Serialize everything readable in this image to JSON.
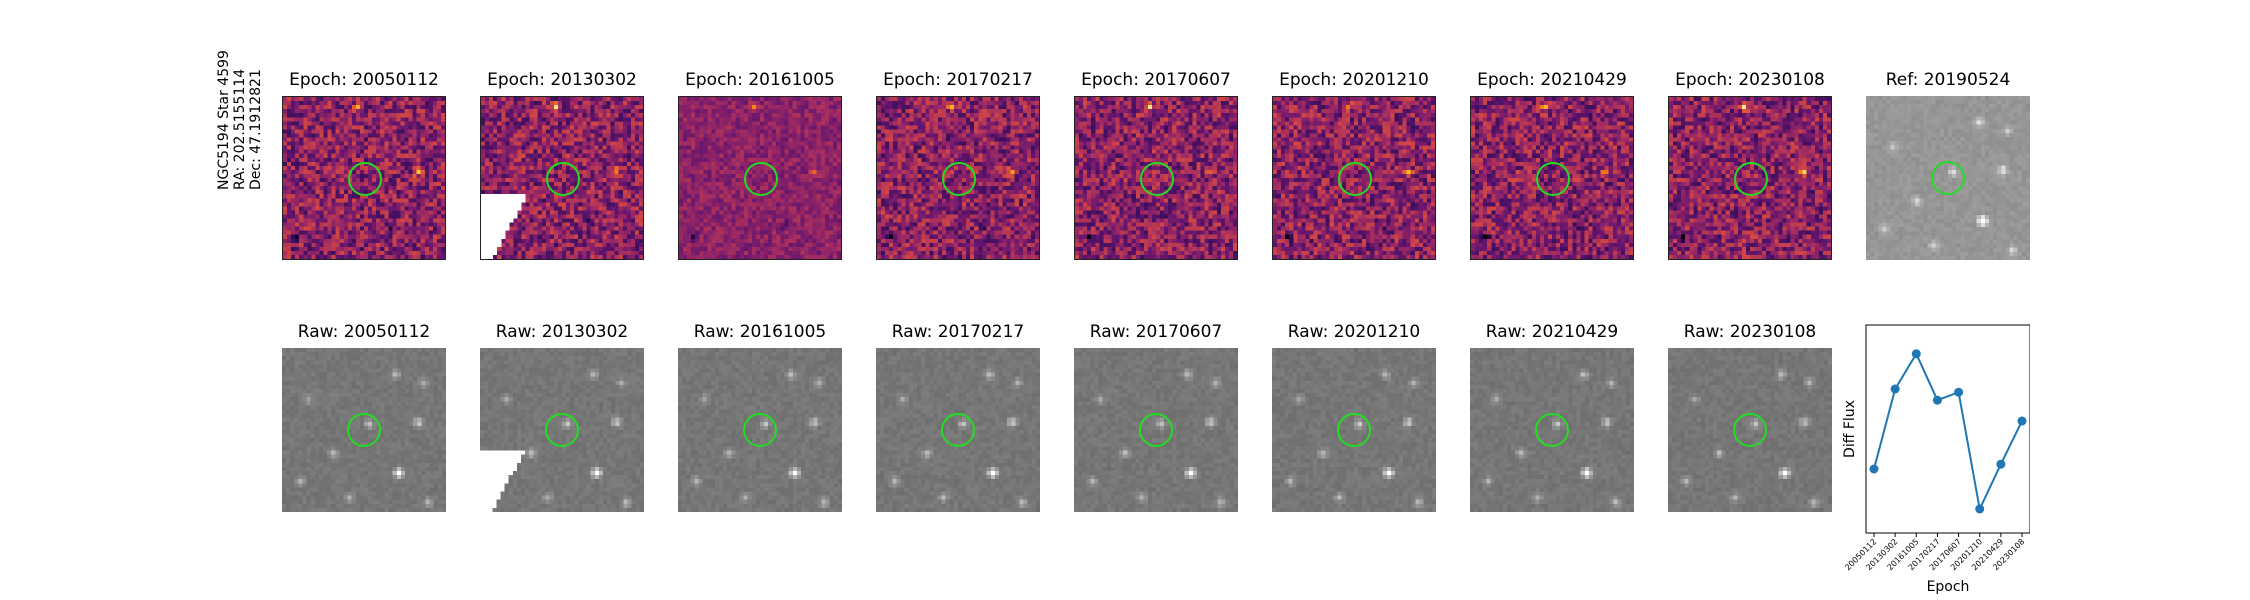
{
  "object": {
    "name": "NGC5194 Star 4599",
    "ra": "RA: 202.5155114",
    "dec": "Dec: 47.1912821"
  },
  "epochs": [
    "20050112",
    "20130302",
    "20161005",
    "20170217",
    "20170607",
    "20201210",
    "20210429",
    "20230108"
  ],
  "diff_titles": [
    "Epoch: 20050112",
    "Epoch: 20130302",
    "Epoch: 20161005",
    "Epoch: 20170217",
    "Epoch: 20170607",
    "Epoch: 20201210",
    "Epoch: 20210429",
    "Epoch: 20230108"
  ],
  "ref_title": "Ref: 20190524",
  "raw_titles": [
    "Raw: 20050112",
    "Raw: 20130302",
    "Raw: 20161005",
    "Raw: 20170217",
    "Raw: 20170607",
    "Raw: 20201210",
    "Raw: 20210429",
    "Raw: 20230108"
  ],
  "colors": {
    "marker_circle": "#22dd22",
    "line": "#1f77b4"
  },
  "chart_data": {
    "type": "line",
    "x": [
      "20050112",
      "20130302",
      "20161005",
      "20170217",
      "20170607",
      "20201210",
      "20210429",
      "20230108"
    ],
    "series": [
      {
        "values": [
          0.15,
          0.65,
          0.87,
          0.58,
          0.63,
          -0.1,
          0.18,
          0.45
        ]
      }
    ],
    "xlabel": "Epoch",
    "ylabel": "Diff Flux",
    "ylim": [
      -0.25,
      1.05
    ],
    "grid": false
  }
}
